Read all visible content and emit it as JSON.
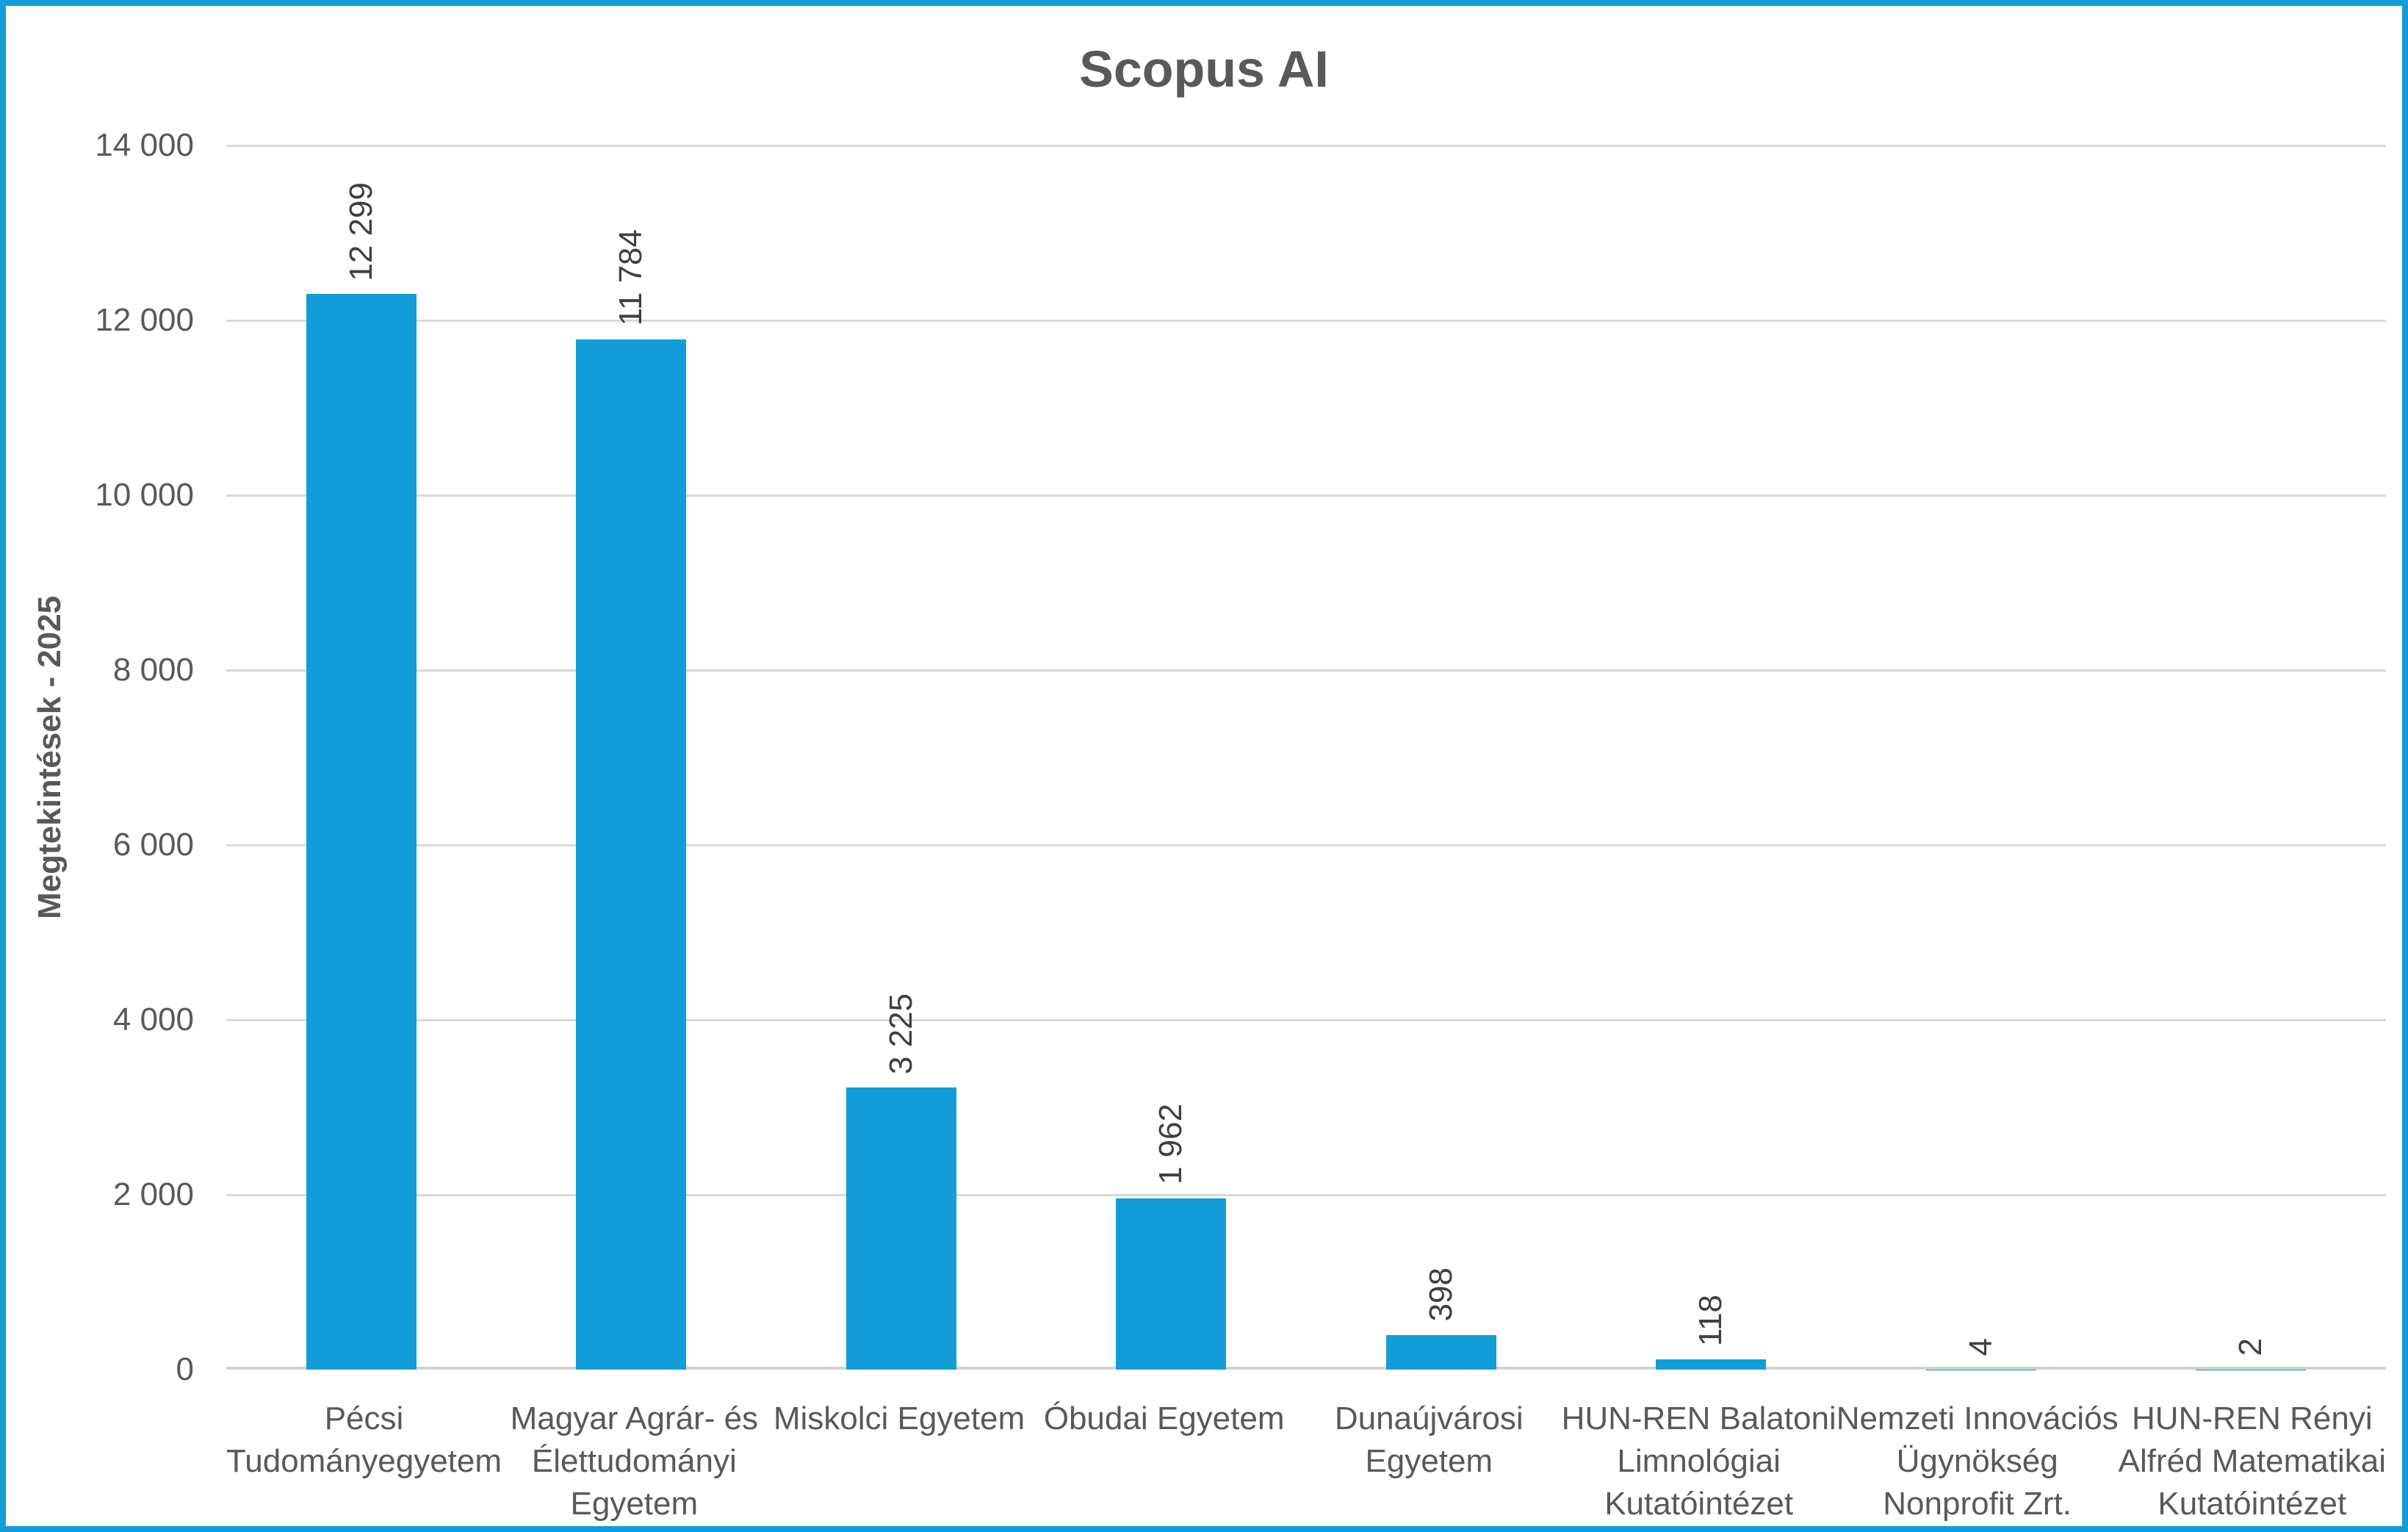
{
  "frame": {
    "border_color": "#129DD8",
    "background": "#ffffff"
  },
  "colors": {
    "bar": "#129DD8",
    "gridline": "#D9D9D9",
    "axis_line": "#D3D3D3",
    "tick_text": "#595959",
    "title_text": "#595959",
    "value_label_text": "#404040"
  },
  "chart_data": {
    "type": "bar",
    "title": "Scopus AI",
    "ylabel": "Megtekintések - 2025",
    "xlabel": "",
    "ylim": [
      0,
      14000
    ],
    "ytick_step": 2000,
    "ytick_labels": [
      "0",
      "2 000",
      "4 000",
      "6 000",
      "8 000",
      "10 000",
      "12 000",
      "14 000"
    ],
    "grid": "horizontal",
    "legend": "none",
    "categories": [
      "Pécsi Tudományegyetem",
      "Magyar Agrár- és Élettudományi Egyetem",
      "Miskolci Egyetem",
      "Óbudai Egyetem",
      "Dunaújvárosi Egyetem",
      "HUN-REN Balatoni Limnológiai Kutatóintézet",
      "Nemzeti Innovációs Ügynökség Nonprofit Zrt.",
      "HUN-REN Rényi Alfréd Matematikai Kutatóintézet"
    ],
    "category_label_lines": [
      [
        "Pécsi",
        "Tudományegyetem"
      ],
      [
        "Magyar Agrár- és",
        "Élettudományi",
        "Egyetem"
      ],
      [
        "Miskolci Egyetem"
      ],
      [
        "Óbudai Egyetem"
      ],
      [
        "Dunaújvárosi",
        "Egyetem"
      ],
      [
        "HUN-REN Balatoni",
        "Limnológiai",
        "Kutatóintézet"
      ],
      [
        "Nemzeti Innovációs",
        "Ügynökség",
        "Nonprofit Zrt."
      ],
      [
        "HUN-REN Rényi",
        "Alfréd Matematikai",
        "Kutatóintézet"
      ]
    ],
    "values": [
      12299,
      11784,
      3225,
      1962,
      398,
      118,
      4,
      2
    ],
    "value_labels": [
      "12 299",
      "11 784",
      "3 225",
      "1 962",
      "398",
      "118",
      "4",
      "2"
    ]
  }
}
